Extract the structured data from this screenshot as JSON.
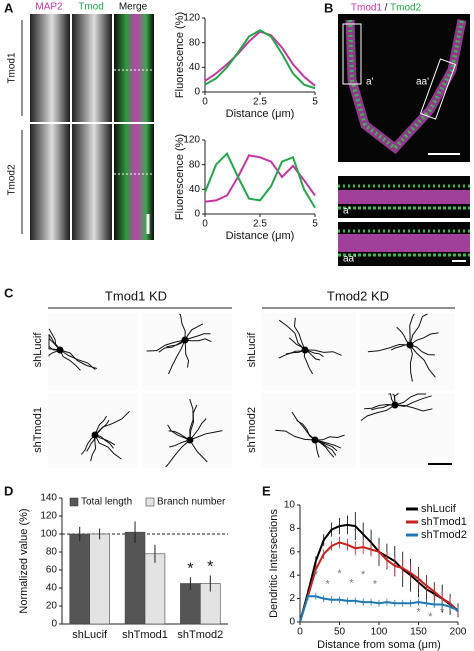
{
  "panel_labels": [
    "A",
    "B",
    "C",
    "D",
    "E"
  ],
  "panel_A": {
    "channels": [
      "MAP2",
      "Tmod",
      "Merge"
    ],
    "rows": [
      "Tmod1",
      "Tmod2"
    ]
  },
  "panel_B": {
    "channel_1": "Tmod1",
    "separator": "/",
    "channel_2": "Tmod2",
    "insets": [
      "a'",
      "aa'"
    ]
  },
  "panel_C": {
    "groups": [
      "Tmod1 KD",
      "Tmod2 KD"
    ],
    "rows": [
      [
        "shLucif",
        "shTmod1"
      ],
      [
        "shLucif",
        "shTmod2"
      ]
    ]
  },
  "chart_data": [
    {
      "type": "line",
      "y_label": "Fluorescence (%)",
      "x_label": "Distance (μm)",
      "x": [
        0,
        0.5,
        1,
        1.5,
        2,
        2.5,
        3,
        3.5,
        4,
        4.5,
        5
      ],
      "series": [
        {
          "color": "#c8359f",
          "values": [
            18,
            30,
            45,
            62,
            82,
            98,
            92,
            72,
            45,
            25,
            10
          ]
        },
        {
          "color": "#22a84a",
          "values": [
            12,
            22,
            40,
            64,
            90,
            100,
            90,
            62,
            30,
            12,
            6
          ]
        }
      ],
      "xlim": [
        0,
        5
      ],
      "ylim": [
        0,
        120
      ],
      "xticks": [
        0,
        2.5,
        5
      ],
      "yticks": [
        0,
        40,
        80,
        120
      ]
    },
    {
      "type": "line",
      "y_label": "Fluorescence (%)",
      "x_label": "Distance (μm)",
      "x": [
        0,
        0.5,
        1,
        1.5,
        2,
        2.5,
        3,
        3.5,
        4,
        4.5,
        5
      ],
      "series": [
        {
          "color": "#c8359f",
          "values": [
            20,
            22,
            30,
            60,
            95,
            92,
            85,
            60,
            78,
            55,
            30
          ]
        },
        {
          "color": "#22a84a",
          "values": [
            35,
            80,
            98,
            60,
            25,
            22,
            45,
            85,
            92,
            40,
            10
          ]
        }
      ],
      "xlim": [
        0,
        5
      ],
      "ylim": [
        0,
        120
      ],
      "xticks": [
        0,
        2.5,
        5
      ],
      "yticks": [
        0,
        40,
        80,
        120
      ]
    },
    {
      "type": "bar",
      "y_label": "Normalized value (%)",
      "categories": [
        "shLucif",
        "shTmod1",
        "shTmod2"
      ],
      "series": [
        {
          "name": "Total length",
          "color": "#555555",
          "values": [
            100,
            102,
            45
          ],
          "errors": [
            8,
            12,
            7
          ]
        },
        {
          "name": "Branch number",
          "color": "#e3e3e3",
          "values": [
            100,
            78,
            45
          ],
          "errors": [
            6,
            10,
            9
          ]
        }
      ],
      "reference_line": 100,
      "annotations": [
        {
          "text": "*",
          "series": 0,
          "index": 2
        },
        {
          "text": "*",
          "series": 1,
          "index": 2
        }
      ],
      "ylim": [
        0,
        140
      ],
      "yticks": [
        0,
        20,
        40,
        60,
        80,
        100,
        120,
        140
      ],
      "legend": "top"
    },
    {
      "type": "line",
      "y_label": "Dendritic Intersections",
      "x_label": "Distance from soma (μm)",
      "x": [
        0,
        10,
        20,
        30,
        40,
        50,
        60,
        70,
        80,
        90,
        100,
        110,
        120,
        130,
        140,
        150,
        160,
        170,
        180,
        190,
        200
      ],
      "series": [
        {
          "name": "shLucif",
          "color": "#000000",
          "values": [
            0,
            2.5,
            5.2,
            7.0,
            7.9,
            8.2,
            8.3,
            8.2,
            7.5,
            6.8,
            6.0,
            5.6,
            5.2,
            4.5,
            4.0,
            3.4,
            2.8,
            2.4,
            2.0,
            1.5,
            1.0
          ],
          "errors": [
            0,
            0.3,
            0.4,
            0.5,
            0.6,
            0.7,
            0.8,
            1.2,
            1.0,
            1.1,
            1.2,
            1.1,
            1.3,
            1.5,
            1.4,
            1.3,
            1.2,
            1.0,
            1.2,
            0.9,
            0.6
          ]
        },
        {
          "name": "shTmod1",
          "color": "#c8201e",
          "values": [
            0,
            2.2,
            4.5,
            5.8,
            6.5,
            6.8,
            6.6,
            6.3,
            6.4,
            6.2,
            6.0,
            5.3,
            4.8,
            4.6,
            4.2,
            3.7,
            3.1,
            2.6,
            2.0,
            1.6,
            0.9
          ],
          "errors": [
            0,
            0.3,
            0.4,
            0.4,
            0.4,
            0.5,
            0.5,
            0.6,
            0.6,
            0.6,
            0.7,
            0.7,
            0.8,
            0.8,
            0.8,
            0.8,
            0.7,
            0.7,
            0.6,
            0.5,
            0.4
          ]
        },
        {
          "name": "shTmod2",
          "color": "#1f78b4",
          "values": [
            0,
            2.2,
            2.2,
            2.0,
            1.9,
            1.9,
            1.8,
            1.8,
            1.7,
            1.7,
            1.6,
            1.7,
            1.6,
            1.6,
            1.6,
            1.7,
            1.6,
            1.5,
            1.5,
            1.3,
            1.0
          ],
          "errors": [
            0,
            0.3,
            0.3,
            0.3,
            0.3,
            0.3,
            0.3,
            0.3,
            0.3,
            0.3,
            0.3,
            0.3,
            0.3,
            0.3,
            0.3,
            0.3,
            0.3,
            0.3,
            0.3,
            0.3,
            0.3
          ]
        }
      ],
      "annotations": [
        {
          "text": "*",
          "x": 20,
          "y": 4.0
        },
        {
          "text": "*",
          "x": 35,
          "y": 3.2
        },
        {
          "text": "*",
          "x": 50,
          "y": 4.1
        },
        {
          "text": "*",
          "x": 65,
          "y": 3.3
        },
        {
          "text": "*",
          "x": 80,
          "y": 4.0
        },
        {
          "text": "*",
          "x": 95,
          "y": 3.2
        },
        {
          "text": "*",
          "x": 150,
          "y": 0.8
        },
        {
          "text": "*",
          "x": 165,
          "y": 0.4
        },
        {
          "text": "*",
          "x": 180,
          "y": 0.8
        }
      ],
      "xlim": [
        0,
        200
      ],
      "ylim": [
        0,
        10
      ],
      "xticks": [
        0,
        50,
        100,
        150,
        200
      ],
      "yticks": [
        0,
        2,
        4,
        6,
        8,
        10
      ],
      "legend": "upper right"
    }
  ]
}
